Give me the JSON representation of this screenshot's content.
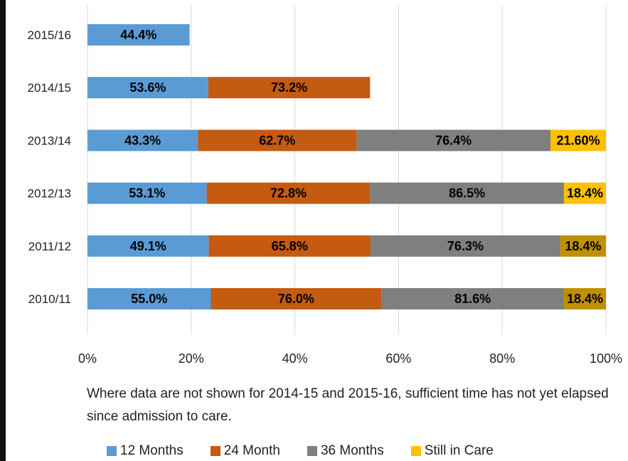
{
  "chart_data": {
    "type": "bar",
    "orientation": "horizontal",
    "stacked": true,
    "categories": [
      "2015/16",
      "2014/15",
      "2013/14",
      "2012/13",
      "2011/12",
      "2010/11"
    ],
    "x_ticks": [
      "0%",
      "20%",
      "40%",
      "60%",
      "80%",
      "100%"
    ],
    "xlim": [
      0,
      100
    ],
    "grid": "vertical",
    "legend_position": "bottom",
    "series": [
      {
        "name": "12 Months",
        "color": "#5B9BD5",
        "values": [
          19.7,
          23.3,
          21.3,
          23.0,
          23.4,
          23.8
        ],
        "labels": [
          "44.4%",
          "53.6%",
          "43.3%",
          "53.1%",
          "49.1%",
          "55.0%"
        ]
      },
      {
        "name": "24 Month",
        "color": "#C55A11",
        "values": [
          0,
          31.2,
          30.6,
          31.5,
          31.2,
          32.9
        ],
        "labels": [
          "",
          "73.2%",
          "62.7%",
          "72.8%",
          "65.8%",
          "76.0%"
        ]
      },
      {
        "name": "36 Months",
        "color": "#7F7F7F",
        "values": [
          0,
          0,
          37.4,
          37.4,
          36.6,
          35.2
        ],
        "labels": [
          "",
          "",
          "76.4%",
          "86.5%",
          "76.3%",
          "81.6%"
        ]
      },
      {
        "name": "Still in Care",
        "color": "#FFC000",
        "bar_colors": [
          "#FFC000",
          "#FFC000",
          "#FFC000",
          "#FFC000",
          "#BF9000",
          "#BF9000"
        ],
        "values": [
          0,
          0,
          10.7,
          8.1,
          8.8,
          8.1
        ],
        "labels": [
          "",
          "",
          "21.60%",
          "18.4%",
          "18.4%",
          "18.4%"
        ]
      }
    ]
  },
  "note": "Where data are not shown for 2014-15 and 2015-16, sufficient time has not yet elapsed since admission to care.",
  "legend": {
    "items": [
      {
        "label": "12 Months",
        "color": "#5B9BD5"
      },
      {
        "label": "24 Month",
        "color": "#C55A11"
      },
      {
        "label": "36 Months",
        "color": "#7F7F7F"
      },
      {
        "label": "Still in Care",
        "color": "#FFC000"
      }
    ]
  }
}
